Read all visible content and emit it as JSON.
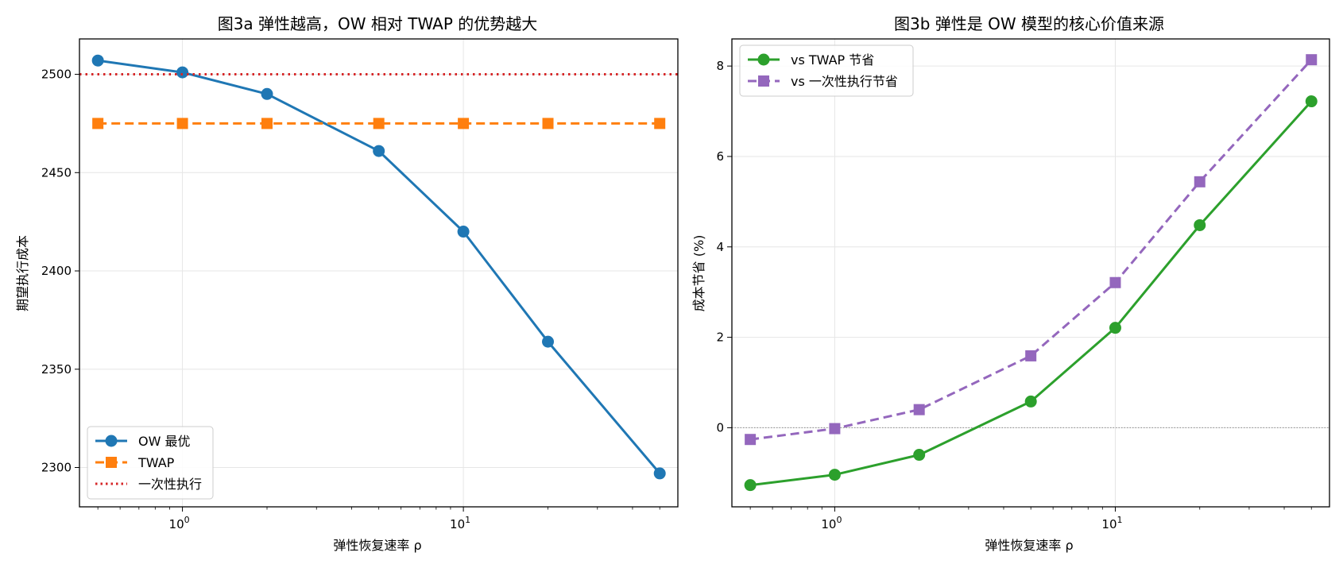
{
  "chart_data": [
    {
      "type": "line",
      "title": "图3a  弹性越高，OW 相对 TWAP 的优势越大",
      "xlabel": "弹性恢复速率 ρ",
      "ylabel": "期望执行成本",
      "xscale": "log",
      "xlim": [
        0.43,
        58
      ],
      "ylim": [
        2280,
        2518
      ],
      "yticks": [
        2300,
        2350,
        2400,
        2450,
        2500
      ],
      "ytick_labels": [
        "2300",
        "2350",
        "2400",
        "2450",
        "2500"
      ],
      "xticks": [
        1,
        10
      ],
      "xtick_labels": [
        "10^0",
        "10^1"
      ],
      "grid": true,
      "legend_position": "lower-left",
      "x": [
        0.5,
        1,
        2,
        5,
        10,
        20,
        50
      ],
      "series": [
        {
          "name": "OW 最优",
          "values": [
            2507,
            2501,
            2490,
            2461,
            2420,
            2364,
            2297
          ],
          "color": "#1f77b4",
          "marker": "circle",
          "linestyle": "solid"
        },
        {
          "name": "TWAP",
          "values": [
            2475,
            2475,
            2475,
            2475,
            2475,
            2475,
            2475
          ],
          "color": "#ff7f0e",
          "marker": "square",
          "linestyle": "dashed"
        },
        {
          "name": "一次性执行",
          "constant": 2500,
          "color": "#d62728",
          "marker": "none",
          "linestyle": "dotted"
        }
      ]
    },
    {
      "type": "line",
      "title": "图3b  弹性是 OW 模型的核心价值来源",
      "xlabel": "弹性恢复速率 ρ",
      "ylabel": "成本节省 (%)",
      "xscale": "log",
      "xlim": [
        0.43,
        58
      ],
      "ylim": [
        -1.75,
        8.6
      ],
      "yticks": [
        0,
        2,
        4,
        6,
        8
      ],
      "ytick_labels": [
        "0",
        "2",
        "4",
        "6",
        "8"
      ],
      "xticks": [
        1,
        10
      ],
      "xtick_labels": [
        "10^0",
        "10^1"
      ],
      "grid": true,
      "legend_position": "upper-left",
      "zero_line": true,
      "x": [
        0.5,
        1,
        2,
        5,
        10,
        20,
        50
      ],
      "series": [
        {
          "name": "vs TWAP 节省",
          "values": [
            -1.27,
            -1.04,
            -0.6,
            0.58,
            2.21,
            4.48,
            7.22
          ],
          "color": "#2ca02c",
          "marker": "circle",
          "linestyle": "solid"
        },
        {
          "name": "vs 一次性执行节省",
          "values": [
            -0.26,
            -0.02,
            0.4,
            1.59,
            3.21,
            5.44,
            8.14
          ],
          "color": "#9467bd",
          "marker": "square",
          "linestyle": "dashed"
        }
      ]
    }
  ]
}
